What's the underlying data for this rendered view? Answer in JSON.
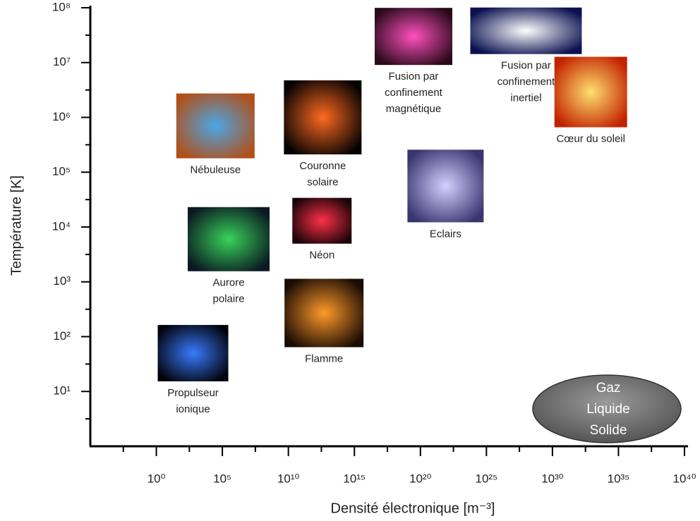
{
  "chart_data": {
    "type": "scatter",
    "x_label": "Densité électronique  [m⁻³]",
    "y_label": "Température  [K]",
    "xscale": "log",
    "yscale": "log",
    "xlim": [
      1e-05,
      1e+40
    ],
    "ylim": [
      1,
      100000000.0
    ],
    "xticks": [
      {
        "value": 1,
        "label": "10⁰"
      },
      {
        "value": 100000.0,
        "label": "10⁵"
      },
      {
        "value": 10000000000.0,
        "label": "10¹⁰"
      },
      {
        "value": 1000000000000000.0,
        "label": "10¹⁵"
      },
      {
        "value": 1e+20,
        "label": "10²⁰"
      },
      {
        "value": 1e+25,
        "label": "10²⁵"
      },
      {
        "value": 1e+30,
        "label": "10³⁰"
      },
      {
        "value": 1e+35,
        "label": "10³⁵"
      },
      {
        "value": 1e+40,
        "label": "10⁴⁰"
      }
    ],
    "yticks": [
      {
        "value": 10,
        "label": "10¹"
      },
      {
        "value": 100,
        "label": "10²"
      },
      {
        "value": 1000,
        "label": "10³"
      },
      {
        "value": 10000.0,
        "label": "10⁴"
      },
      {
        "value": 100000.0,
        "label": "10⁵"
      },
      {
        "value": 1000000.0,
        "label": "10⁶"
      },
      {
        "value": 10000000.0,
        "label": "10⁷"
      },
      {
        "value": 100000000.0,
        "label": "10⁸"
      }
    ],
    "points": [
      {
        "label": [
          "Propulseur",
          "ionique"
        ],
        "x": 600,
        "y": 50
      },
      {
        "label": [
          "Flamme"
        ],
        "x": 5000000000000.0,
        "y": 270
      },
      {
        "label": [
          "Aurore",
          "polaire"
        ],
        "x": 300000.0,
        "y": 6000
      },
      {
        "label": [
          "Néon"
        ],
        "x": 3500000000000.0,
        "y": 13000
      },
      {
        "label": [
          "Nébuleuse"
        ],
        "x": 30000.0,
        "y": 700000.0
      },
      {
        "label": [
          "Couronne",
          "solaire"
        ],
        "x": 4000000000000.0,
        "y": 1000000.0
      },
      {
        "label": [
          "Eclairs"
        ],
        "x": 8e+21,
        "y": 56000
      },
      {
        "label": [
          "Fusion par",
          "confinement",
          "magnétique"
        ],
        "x": 3e+19,
        "y": 30000000.0
      },
      {
        "label": [
          "Fusion par",
          "confinement",
          "inertiel"
        ],
        "x": 1e+28,
        "y": 38000000.0
      },
      {
        "label": [
          "Cœur du soleil"
        ],
        "x": 8e+32,
        "y": 2900000.0
      }
    ],
    "states": [
      "Gaz",
      "Liquide",
      "Solide"
    ]
  }
}
